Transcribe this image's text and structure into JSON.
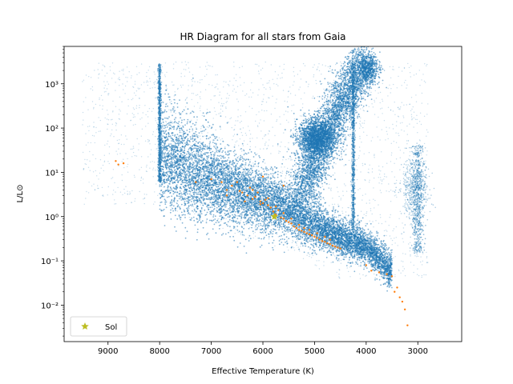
{
  "chart_data": {
    "type": "scatter",
    "title": "HR Diagram for all stars from Gaia",
    "xlabel": "Effective Temperature (K)",
    "ylabel": "L/L⊙",
    "x_scale": "linear",
    "x_inverted": true,
    "xlim": [
      9850,
      2150
    ],
    "y_scale": "log",
    "ylim": [
      0.0015,
      7000
    ],
    "x_ticks": [
      9000,
      8000,
      7000,
      6000,
      5000,
      4000,
      3000
    ],
    "x_tick_labels": [
      "9000",
      "8000",
      "7000",
      "6000",
      "5000",
      "4000",
      "3000"
    ],
    "y_ticks": [
      0.01,
      0.1,
      1,
      10,
      100,
      1000
    ],
    "y_tick_labels": [
      "10⁻²",
      "10⁻¹",
      "10⁰",
      "10¹",
      "10²",
      "10³"
    ],
    "grid": false,
    "legend": {
      "position": "lower-left",
      "entries": [
        "Sol"
      ]
    },
    "series": [
      {
        "name": "",
        "role": "all-gaia-stars",
        "color": "#1f77b4",
        "marker": "dot",
        "density_regions": {
          "main_sequence": [
            [
              8000,
              15
            ],
            [
              7500,
              8
            ],
            [
              7000,
              5
            ],
            [
              6500,
              3
            ],
            [
              6000,
              2
            ],
            [
              5500,
              1.2
            ],
            [
              5000,
              0.55
            ],
            [
              4500,
              0.3
            ],
            [
              4000,
              0.18
            ],
            [
              3700,
              0.09
            ],
            [
              3500,
              0.05
            ]
          ],
          "giant_branch": [
            [
              5300,
              3
            ],
            [
              5100,
              8
            ],
            [
              4900,
              25
            ],
            [
              4800,
              60
            ],
            [
              4600,
              200
            ],
            [
              4400,
              600
            ],
            [
              4200,
              1500
            ],
            [
              4000,
              3000
            ]
          ],
          "red_clump": [
            [
              5000,
              60
            ]
          ],
          "vertical_streaks_K": [
            8000,
            4250,
            3000
          ],
          "upper_envelope_L": 3000
        }
      },
      {
        "name": "",
        "role": "nearby-stars",
        "color": "#ff7f0e",
        "marker": "dot",
        "points": [
          [
            8850,
            18
          ],
          [
            8800,
            15
          ],
          [
            8700,
            16
          ],
          [
            7300,
            6
          ],
          [
            7000,
            7
          ],
          [
            6800,
            6
          ],
          [
            6700,
            4
          ],
          [
            6600,
            5
          ],
          [
            6500,
            6
          ],
          [
            6450,
            3.8
          ],
          [
            6400,
            3.5
          ],
          [
            6300,
            3
          ],
          [
            6250,
            4.5
          ],
          [
            6200,
            2.5
          ],
          [
            6150,
            2.8
          ],
          [
            6100,
            3.5
          ],
          [
            6050,
            2.2
          ],
          [
            6000,
            2
          ],
          [
            5950,
            2.4
          ],
          [
            5900,
            1.8
          ],
          [
            5850,
            1.6
          ],
          [
            5800,
            1.3
          ],
          [
            5750,
            1.1
          ],
          [
            5700,
            1.4
          ],
          [
            5650,
            0.95
          ],
          [
            5600,
            0.9
          ],
          [
            5550,
            0.8
          ],
          [
            5500,
            0.75
          ],
          [
            5450,
            0.7
          ],
          [
            5400,
            0.6
          ],
          [
            5350,
            0.55
          ],
          [
            5300,
            0.5
          ],
          [
            5250,
            0.48
          ],
          [
            5200,
            0.45
          ],
          [
            5150,
            0.42
          ],
          [
            5100,
            0.4
          ],
          [
            5050,
            0.38
          ],
          [
            5000,
            0.35
          ],
          [
            4950,
            0.33
          ],
          [
            4900,
            0.3
          ],
          [
            4850,
            0.28
          ],
          [
            4800,
            0.27
          ],
          [
            4750,
            0.25
          ],
          [
            4700,
            0.24
          ],
          [
            4650,
            0.22
          ],
          [
            4600,
            0.21
          ],
          [
            4550,
            0.2
          ],
          [
            4500,
            0.19
          ],
          [
            6700,
            3
          ],
          [
            6350,
            2.2
          ],
          [
            6200,
            4
          ],
          [
            6050,
            1.9
          ],
          [
            5900,
            2.6
          ],
          [
            5750,
            1.7
          ],
          [
            5600,
            1.2
          ],
          [
            5450,
            0.9
          ],
          [
            5300,
            0.65
          ],
          [
            5200,
            0.55
          ],
          [
            5100,
            0.5
          ],
          [
            4950,
            0.42
          ],
          [
            4800,
            0.35
          ],
          [
            4700,
            0.3
          ],
          [
            4000,
            0.08
          ],
          [
            3900,
            0.06
          ],
          [
            3750,
            0.055
          ],
          [
            3600,
            0.05
          ],
          [
            3500,
            0.045
          ],
          [
            3450,
            0.02
          ],
          [
            3400,
            0.025
          ],
          [
            3350,
            0.015
          ],
          [
            3300,
            0.012
          ],
          [
            3250,
            0.008
          ],
          [
            3200,
            0.0035
          ],
          [
            6000,
            8
          ],
          [
            5600,
            5
          ]
        ]
      },
      {
        "name": "Sol",
        "role": "sun",
        "color": "#bcbd22",
        "marker": "star",
        "points": [
          [
            5778,
            1
          ]
        ]
      }
    ]
  }
}
